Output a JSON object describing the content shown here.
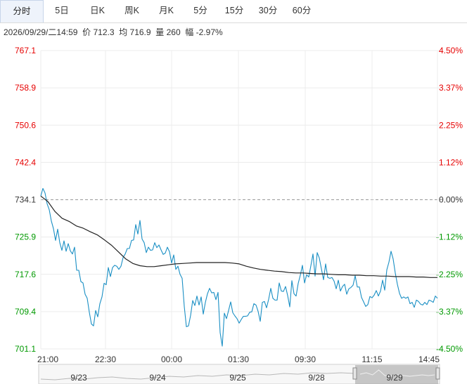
{
  "tabs": [
    {
      "label": "分时",
      "active": true
    },
    {
      "label": "5日",
      "active": false
    },
    {
      "label": "日K",
      "active": false
    },
    {
      "label": "周K",
      "active": false
    },
    {
      "label": "月K",
      "active": false
    },
    {
      "label": "5分",
      "active": false
    },
    {
      "label": "15分",
      "active": false
    },
    {
      "label": "30分",
      "active": false
    },
    {
      "label": "60分",
      "active": false
    }
  ],
  "info": {
    "datetime": "2026/09/29/二14:59",
    "price_label": "价",
    "price": "712.3",
    "avg_label": "均",
    "avg": "716.9",
    "vol_label": "量",
    "vol": "260",
    "chg_label": "幅",
    "chg": "-2.97%"
  },
  "navigator": {
    "dates": [
      "9/23",
      "9/24",
      "9/25",
      "9/28",
      "9/29"
    ]
  },
  "chart_data": {
    "type": "line",
    "title": "",
    "xlabel": "",
    "ylabel": "",
    "ylim": [
      701.1,
      767.1
    ],
    "prev_close": 734.1,
    "y_ticks": [
      "767.1",
      "758.9",
      "750.6",
      "742.4",
      "734.1",
      "725.9",
      "717.6",
      "709.4",
      "701.1"
    ],
    "pct_ticks": [
      "4.50%",
      "3.37%",
      "2.25%",
      "1.12%",
      "0.00%",
      "-1.12%",
      "-2.25%",
      "-3.37%",
      "-4.50%"
    ],
    "x_ticks": [
      "21:00",
      "22:30",
      "00:00",
      "01:30",
      "09:30",
      "11:15",
      "14:45"
    ],
    "colors": {
      "up": "#e60000",
      "down": "#009900",
      "neutral": "#333333",
      "price": "#1a8fc4",
      "avg": "#222222"
    },
    "grid": true,
    "series": [
      {
        "values": [
          734.9,
          736.6,
          735.6,
          733.2,
          731.9,
          729.4,
          727.7,
          725.1,
          727.6,
          724.6,
          722.9,
          725.0,
          722.7,
          724.4,
          722.8,
          722.1,
          723.6,
          718.5,
          718.5,
          716.0,
          715.7,
          713.2,
          712.3,
          709.2,
          706.6,
          706.2,
          709.6,
          708.2,
          711.1,
          712.6,
          715.6,
          715.3,
          719.1,
          717.1,
          719.1,
          719.6,
          719.4,
          718.7,
          719.4,
          721.3,
          722.1,
          723.3,
          723.3,
          725.1,
          725.2,
          728.6,
          726.5,
          729.5,
          725.4,
          724.6,
          722.4,
          723.6,
          722.9,
          723.0,
          724.6,
          723.5,
          724.1,
          723.0,
          722.0,
          722.3,
          723.6,
          722.6,
          720.1,
          721.9,
          718.7,
          719.4,
          717.6,
          716.7,
          710.5,
          706.0,
          706.2,
          708.5,
          711.8,
          710.7,
          712.8,
          710.8,
          712.6,
          708.8,
          711.4,
          713.3,
          714.5,
          713.5,
          713.6,
          712.0,
          713.6,
          704.7,
          701.7,
          709.0,
          707.8,
          709.6,
          711.5,
          709.1,
          708.4,
          707.8,
          706.8,
          707.6,
          708.3,
          708.3,
          708.4,
          709.2,
          709.3,
          711.1,
          710.8,
          709.4,
          707.2,
          711.4,
          711.6,
          710.2,
          712.1,
          714.5,
          712.3,
          711.9,
          711.9,
          715.7,
          713.9,
          713.8,
          714.9,
          712.9,
          710.4,
          716.2,
          713.3,
          712.8,
          715.6,
          717.4,
          719.6,
          715.7,
          717.5,
          717.0,
          719.5,
          722.1,
          717.2,
          722.4,
          721.2,
          718.8,
          716.4,
          719.9,
          716.9,
          716.7,
          716.9,
          716.1,
          714.4,
          716.3,
          713.9,
          714.9,
          715.4,
          713.2,
          714.4,
          714.7,
          715.2,
          717.3,
          714.8,
          714.8,
          712.5,
          711.5,
          710.5,
          710.9,
          712.7,
          712.4,
          713.0,
          714.0,
          712.8,
          713.9,
          716.3,
          714.1,
          718.6,
          720.3,
          722.7,
          721.0,
          717.9,
          715.4,
          713.4,
          712.3,
          712.6,
          712.3,
          712.6,
          711.1,
          711.4,
          710.3,
          711.9,
          711.6,
          711.0,
          710.8,
          711.4,
          710.9,
          711.9,
          711.7,
          711.4,
          712.8,
          712.3
        ],
        "x_end": 622
      },
      {
        "values": [
          734.9,
          733.7,
          731.5,
          730.0,
          729.3,
          728.3,
          727.8,
          727.0,
          726.3,
          725.2,
          724.0,
          722.5,
          721.0,
          720.0,
          719.5,
          719.3,
          719.3,
          719.5,
          719.7,
          719.9,
          720.0,
          720.1,
          720.2,
          720.2,
          720.2,
          720.2,
          720.2,
          720.1,
          719.9,
          719.4,
          719.0,
          718.7,
          718.5,
          718.3,
          718.2,
          718.0,
          717.9,
          717.9,
          717.8,
          717.7,
          717.7,
          717.6,
          717.5,
          717.5,
          717.4,
          717.4,
          717.3,
          717.3,
          717.2,
          717.2,
          717.1,
          717.1,
          717.1,
          717.0,
          717.0,
          716.9,
          716.9
        ],
        "x_end": 622
      }
    ]
  }
}
